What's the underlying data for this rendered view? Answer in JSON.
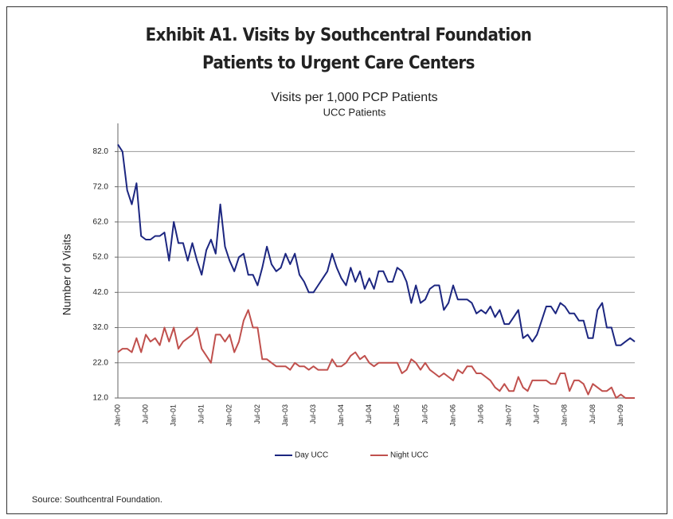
{
  "chart_data": {
    "type": "line",
    "exhibit_title": [
      "Exhibit A1. Visits by Southcentral Foundation",
      "Patients to Urgent Care Centers"
    ],
    "title": "Visits per 1,000 PCP Patients",
    "subtitle": "UCC Patients",
    "y_label": "Number of Visits",
    "source": "Source: Southcentral Foundation.",
    "categories": [
      "Jan-00",
      null,
      null,
      null,
      null,
      null,
      "Jul-00",
      null,
      null,
      null,
      null,
      null,
      "Jan-01",
      null,
      null,
      null,
      null,
      null,
      "Jul-01",
      null,
      null,
      null,
      null,
      null,
      "Jan-02",
      null,
      null,
      null,
      null,
      null,
      "Jul-02",
      null,
      null,
      null,
      null,
      null,
      "Jan-03",
      null,
      null,
      null,
      null,
      null,
      "Jul-03",
      null,
      null,
      null,
      null,
      null,
      "Jan-04",
      null,
      null,
      null,
      null,
      null,
      "Jul-04",
      null,
      null,
      null,
      null,
      null,
      "Jan-05",
      null,
      null,
      null,
      null,
      null,
      "Jul-05",
      null,
      null,
      null,
      null,
      null,
      "Jan-06",
      null,
      null,
      null,
      null,
      null,
      "Jul-06",
      null,
      null,
      null,
      null,
      null,
      "Jan-07",
      null,
      null,
      null,
      null,
      null,
      "Jul-07",
      null,
      null,
      null,
      null,
      null,
      "Jan-08",
      null,
      null,
      null,
      null,
      null,
      "Jul-08",
      null,
      null,
      null,
      null,
      null,
      "Jan-09",
      null,
      null,
      null
    ],
    "series": [
      {
        "name": "Day UCC",
        "color": "#1c2680",
        "values": [
          84,
          82,
          71,
          67,
          73,
          58,
          57,
          57,
          58,
          58,
          59,
          51,
          62,
          56,
          56,
          51,
          56,
          51,
          47,
          54,
          57,
          53,
          67,
          55,
          51,
          48,
          52,
          53,
          47,
          47,
          44,
          49,
          55,
          50,
          48,
          49,
          53,
          50,
          53,
          47,
          45,
          42,
          42,
          44,
          46,
          48,
          53,
          49,
          46,
          44,
          49,
          45,
          48,
          43,
          46,
          43,
          48,
          48,
          45,
          45,
          49,
          48,
          45,
          39,
          44,
          39,
          40,
          43,
          44,
          44,
          37,
          39,
          44,
          40,
          40,
          40,
          39,
          36,
          37,
          36,
          38,
          35,
          37,
          33,
          33,
          35,
          37,
          29,
          30,
          28,
          30,
          34,
          38,
          38,
          36,
          39,
          38,
          36,
          36,
          34,
          34,
          29,
          29,
          37,
          39,
          32,
          32,
          27,
          27,
          28,
          29,
          28
        ]
      },
      {
        "name": "Night UCC",
        "color": "#c0504d",
        "values": [
          25,
          26,
          26,
          25,
          29,
          25,
          30,
          28,
          29,
          27,
          32,
          28,
          32,
          26,
          28,
          29,
          30,
          32,
          26,
          24,
          22,
          30,
          30,
          28,
          30,
          25,
          28,
          34,
          37,
          32,
          32,
          23,
          23,
          22,
          21,
          21,
          21,
          20,
          22,
          21,
          21,
          20,
          21,
          20,
          20,
          20,
          23,
          21,
          21,
          22,
          24,
          25,
          23,
          24,
          22,
          21,
          22,
          22,
          22,
          22,
          22,
          19,
          20,
          23,
          22,
          20,
          22,
          20,
          19,
          18,
          19,
          18,
          17,
          20,
          19,
          21,
          21,
          19,
          19,
          18,
          17,
          15,
          14,
          16,
          14,
          14,
          18,
          15,
          14,
          17,
          17,
          17,
          17,
          16,
          16,
          19,
          19,
          14,
          17,
          17,
          16,
          13,
          16,
          15,
          14,
          14,
          15,
          12,
          13,
          12,
          12,
          12
        ]
      }
    ],
    "ylim": [
      12,
      90
    ],
    "yticks": [
      {
        "value": 12,
        "label": "12.0"
      },
      {
        "value": 22,
        "label": "22.0"
      },
      {
        "value": 32,
        "label": "32.0"
      },
      {
        "value": 42,
        "label": "42.0"
      },
      {
        "value": 52,
        "label": "52.0"
      },
      {
        "value": 62,
        "label": "62.0"
      },
      {
        "value": 72,
        "label": "72.0"
      },
      {
        "value": 82,
        "label": "82.0"
      }
    ],
    "grid": true,
    "legend": "bottom"
  }
}
